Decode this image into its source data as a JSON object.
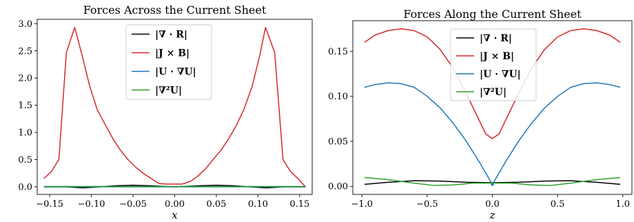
{
  "chart_data": [
    {
      "type": "line",
      "title": "Forces Across the Current Sheet",
      "xlabel": "x",
      "ylabel": "",
      "xlim": [
        -0.165,
        0.165
      ],
      "ylim": [
        -0.14,
        3.08
      ],
      "xticks": [
        -0.15,
        -0.1,
        -0.05,
        0.0,
        0.05,
        0.1,
        0.15
      ],
      "xtick_labels": [
        "−0.15",
        "−0.10",
        "−0.05",
        "0.00",
        "0.05",
        "0.10",
        "0.15"
      ],
      "yticks": [
        0.0,
        0.5,
        1.0,
        1.5,
        2.0,
        2.5,
        3.0
      ],
      "ytick_labels": [
        "0.0",
        "0.5",
        "1.0",
        "1.5",
        "2.0",
        "2.5",
        "3.0"
      ],
      "grid": false,
      "legend_position": "top-center",
      "series": [
        {
          "name": "|∇ · R|",
          "color": "#000000",
          "x": [
            -0.157,
            -0.13,
            -0.11,
            -0.09,
            -0.07,
            -0.05,
            -0.03,
            -0.01,
            0.0,
            0.01,
            0.03,
            0.05,
            0.07,
            0.09,
            0.11,
            0.13,
            0.157
          ],
          "y": [
            0.0,
            0.0,
            -0.02,
            0.0,
            0.02,
            0.03,
            0.02,
            0.005,
            0.0,
            0.005,
            0.02,
            0.03,
            0.02,
            0.0,
            -0.02,
            0.0,
            0.0
          ]
        },
        {
          "name": "|J × B|",
          "color": "#d62728",
          "x": [
            -0.157,
            -0.148,
            -0.139,
            -0.13,
            -0.12,
            -0.111,
            -0.102,
            -0.093,
            -0.083,
            -0.074,
            -0.065,
            -0.056,
            -0.046,
            -0.037,
            -0.028,
            -0.019,
            -0.009,
            0.0,
            0.009,
            0.019,
            0.028,
            0.037,
            0.046,
            0.056,
            0.065,
            0.074,
            0.083,
            0.093,
            0.102,
            0.109,
            0.12,
            0.13,
            0.139,
            0.148,
            0.157
          ],
          "y": [
            0.15,
            0.28,
            0.5,
            2.47,
            2.93,
            2.41,
            1.85,
            1.42,
            1.13,
            0.88,
            0.67,
            0.5,
            0.35,
            0.24,
            0.15,
            0.06,
            0.05,
            0.05,
            0.05,
            0.1,
            0.2,
            0.33,
            0.5,
            0.68,
            0.89,
            1.13,
            1.42,
            1.85,
            2.41,
            2.93,
            2.47,
            0.5,
            0.28,
            0.15,
            0.0
          ]
        },
        {
          "name": "|U · ∇U|",
          "color": "#1f77b4",
          "x": [
            -0.157,
            0.157
          ],
          "y": [
            0.0,
            0.0
          ]
        },
        {
          "name": "|∇²U|",
          "color": "#2ca02c",
          "x": [
            -0.157,
            0.157
          ],
          "y": [
            0.005,
            0.005
          ]
        }
      ]
    },
    {
      "type": "line",
      "title": "Forces Along the Current Sheet",
      "xlabel": "z",
      "ylabel": "",
      "xlim": [
        -1.07,
        1.07
      ],
      "ylim": [
        -0.009,
        0.184
      ],
      "xticks": [
        -1.0,
        -0.5,
        0.0,
        0.5,
        1.0
      ],
      "xtick_labels": [
        "−1.0",
        "−0.5",
        "0.0",
        "0.5",
        "1.0"
      ],
      "yticks": [
        0.0,
        0.05,
        0.1,
        0.15
      ],
      "ytick_labels": [
        "0.00",
        "0.05",
        "0.10",
        "0.15"
      ],
      "grid": false,
      "legend_position": "top-center",
      "series": [
        {
          "name": "|∇ · R|",
          "color": "#000000",
          "x": [
            -0.98,
            -0.8,
            -0.6,
            -0.4,
            -0.2,
            0.0,
            0.2,
            0.4,
            0.6,
            0.8,
            0.98
          ],
          "y": [
            0.0022,
            0.0045,
            0.0062,
            0.0058,
            0.0045,
            0.004,
            0.0045,
            0.0058,
            0.0062,
            0.0045,
            0.0022
          ]
        },
        {
          "name": "|J × B|",
          "color": "#d62728",
          "x": [
            -0.98,
            -0.9,
            -0.8,
            -0.7,
            -0.6,
            -0.5,
            -0.4,
            -0.3,
            -0.2,
            -0.1,
            -0.05,
            0.0,
            0.05,
            0.1,
            0.2,
            0.3,
            0.4,
            0.5,
            0.6,
            0.7,
            0.8,
            0.9,
            0.98
          ],
          "y": [
            0.16,
            0.168,
            0.173,
            0.175,
            0.173,
            0.166,
            0.152,
            0.131,
            0.103,
            0.073,
            0.058,
            0.053,
            0.058,
            0.073,
            0.103,
            0.131,
            0.152,
            0.166,
            0.173,
            0.175,
            0.173,
            0.168,
            0.16
          ],
          "markers": false
        },
        {
          "name": "|U · ∇U|",
          "color": "#1f77b4",
          "x": [
            -0.98,
            -0.9,
            -0.8,
            -0.7,
            -0.6,
            -0.5,
            -0.4,
            -0.3,
            -0.2,
            -0.1,
            0.0,
            0.1,
            0.2,
            0.3,
            0.4,
            0.5,
            0.6,
            0.7,
            0.8,
            0.9,
            0.98
          ],
          "y": [
            0.11,
            0.113,
            0.115,
            0.114,
            0.11,
            0.1,
            0.087,
            0.07,
            0.05,
            0.027,
            0.002,
            0.027,
            0.05,
            0.07,
            0.087,
            0.1,
            0.11,
            0.114,
            0.115,
            0.113,
            0.11
          ]
        },
        {
          "name": "|∇²U|",
          "color": "#2ca02c",
          "x": [
            -0.98,
            -0.8,
            -0.6,
            -0.45,
            -0.3,
            -0.15,
            0.0,
            0.15,
            0.3,
            0.45,
            0.6,
            0.8,
            0.98
          ],
          "y": [
            0.0098,
            0.0075,
            0.0035,
            0.001,
            0.0015,
            0.0035,
            0.0035,
            0.0035,
            0.0015,
            0.001,
            0.0035,
            0.0075,
            0.0098
          ]
        }
      ]
    }
  ]
}
